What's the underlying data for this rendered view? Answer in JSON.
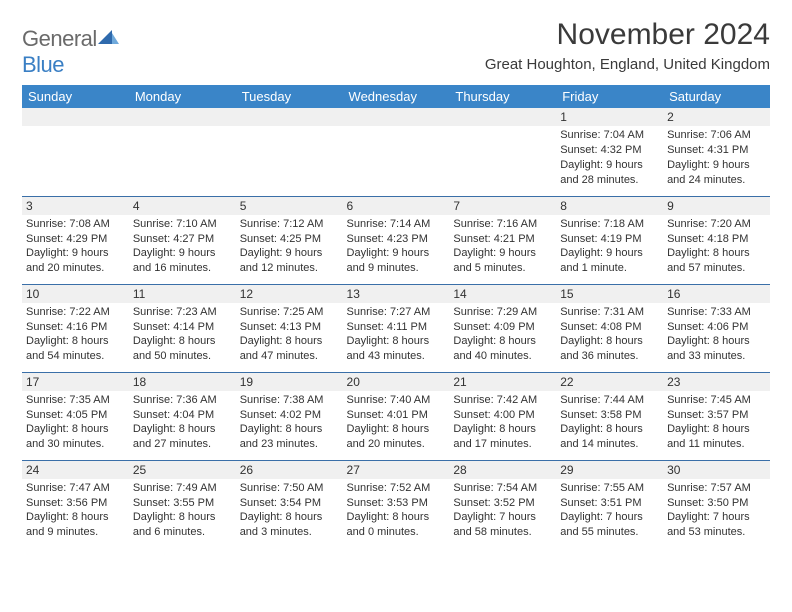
{
  "logo": {
    "word1": "General",
    "word2": "Blue"
  },
  "title": "November 2024",
  "location": "Great Houghton, England, United Kingdom",
  "colors": {
    "header_bg": "#3a85c8",
    "header_text": "#ffffff",
    "daynum_bg": "#f0f0f0",
    "border": "#3a6fa8",
    "text": "#323232",
    "logo_gray": "#6a6a6a",
    "logo_blue": "#3a7fc4"
  },
  "day_headers": [
    "Sunday",
    "Monday",
    "Tuesday",
    "Wednesday",
    "Thursday",
    "Friday",
    "Saturday"
  ],
  "weeks": [
    [
      {
        "n": "",
        "lines": []
      },
      {
        "n": "",
        "lines": []
      },
      {
        "n": "",
        "lines": []
      },
      {
        "n": "",
        "lines": []
      },
      {
        "n": "",
        "lines": []
      },
      {
        "n": "1",
        "lines": [
          "Sunrise: 7:04 AM",
          "Sunset: 4:32 PM",
          "Daylight: 9 hours",
          "and 28 minutes."
        ]
      },
      {
        "n": "2",
        "lines": [
          "Sunrise: 7:06 AM",
          "Sunset: 4:31 PM",
          "Daylight: 9 hours",
          "and 24 minutes."
        ]
      }
    ],
    [
      {
        "n": "3",
        "lines": [
          "Sunrise: 7:08 AM",
          "Sunset: 4:29 PM",
          "Daylight: 9 hours",
          "and 20 minutes."
        ]
      },
      {
        "n": "4",
        "lines": [
          "Sunrise: 7:10 AM",
          "Sunset: 4:27 PM",
          "Daylight: 9 hours",
          "and 16 minutes."
        ]
      },
      {
        "n": "5",
        "lines": [
          "Sunrise: 7:12 AM",
          "Sunset: 4:25 PM",
          "Daylight: 9 hours",
          "and 12 minutes."
        ]
      },
      {
        "n": "6",
        "lines": [
          "Sunrise: 7:14 AM",
          "Sunset: 4:23 PM",
          "Daylight: 9 hours",
          "and 9 minutes."
        ]
      },
      {
        "n": "7",
        "lines": [
          "Sunrise: 7:16 AM",
          "Sunset: 4:21 PM",
          "Daylight: 9 hours",
          "and 5 minutes."
        ]
      },
      {
        "n": "8",
        "lines": [
          "Sunrise: 7:18 AM",
          "Sunset: 4:19 PM",
          "Daylight: 9 hours",
          "and 1 minute."
        ]
      },
      {
        "n": "9",
        "lines": [
          "Sunrise: 7:20 AM",
          "Sunset: 4:18 PM",
          "Daylight: 8 hours",
          "and 57 minutes."
        ]
      }
    ],
    [
      {
        "n": "10",
        "lines": [
          "Sunrise: 7:22 AM",
          "Sunset: 4:16 PM",
          "Daylight: 8 hours",
          "and 54 minutes."
        ]
      },
      {
        "n": "11",
        "lines": [
          "Sunrise: 7:23 AM",
          "Sunset: 4:14 PM",
          "Daylight: 8 hours",
          "and 50 minutes."
        ]
      },
      {
        "n": "12",
        "lines": [
          "Sunrise: 7:25 AM",
          "Sunset: 4:13 PM",
          "Daylight: 8 hours",
          "and 47 minutes."
        ]
      },
      {
        "n": "13",
        "lines": [
          "Sunrise: 7:27 AM",
          "Sunset: 4:11 PM",
          "Daylight: 8 hours",
          "and 43 minutes."
        ]
      },
      {
        "n": "14",
        "lines": [
          "Sunrise: 7:29 AM",
          "Sunset: 4:09 PM",
          "Daylight: 8 hours",
          "and 40 minutes."
        ]
      },
      {
        "n": "15",
        "lines": [
          "Sunrise: 7:31 AM",
          "Sunset: 4:08 PM",
          "Daylight: 8 hours",
          "and 36 minutes."
        ]
      },
      {
        "n": "16",
        "lines": [
          "Sunrise: 7:33 AM",
          "Sunset: 4:06 PM",
          "Daylight: 8 hours",
          "and 33 minutes."
        ]
      }
    ],
    [
      {
        "n": "17",
        "lines": [
          "Sunrise: 7:35 AM",
          "Sunset: 4:05 PM",
          "Daylight: 8 hours",
          "and 30 minutes."
        ]
      },
      {
        "n": "18",
        "lines": [
          "Sunrise: 7:36 AM",
          "Sunset: 4:04 PM",
          "Daylight: 8 hours",
          "and 27 minutes."
        ]
      },
      {
        "n": "19",
        "lines": [
          "Sunrise: 7:38 AM",
          "Sunset: 4:02 PM",
          "Daylight: 8 hours",
          "and 23 minutes."
        ]
      },
      {
        "n": "20",
        "lines": [
          "Sunrise: 7:40 AM",
          "Sunset: 4:01 PM",
          "Daylight: 8 hours",
          "and 20 minutes."
        ]
      },
      {
        "n": "21",
        "lines": [
          "Sunrise: 7:42 AM",
          "Sunset: 4:00 PM",
          "Daylight: 8 hours",
          "and 17 minutes."
        ]
      },
      {
        "n": "22",
        "lines": [
          "Sunrise: 7:44 AM",
          "Sunset: 3:58 PM",
          "Daylight: 8 hours",
          "and 14 minutes."
        ]
      },
      {
        "n": "23",
        "lines": [
          "Sunrise: 7:45 AM",
          "Sunset: 3:57 PM",
          "Daylight: 8 hours",
          "and 11 minutes."
        ]
      }
    ],
    [
      {
        "n": "24",
        "lines": [
          "Sunrise: 7:47 AM",
          "Sunset: 3:56 PM",
          "Daylight: 8 hours",
          "and 9 minutes."
        ]
      },
      {
        "n": "25",
        "lines": [
          "Sunrise: 7:49 AM",
          "Sunset: 3:55 PM",
          "Daylight: 8 hours",
          "and 6 minutes."
        ]
      },
      {
        "n": "26",
        "lines": [
          "Sunrise: 7:50 AM",
          "Sunset: 3:54 PM",
          "Daylight: 8 hours",
          "and 3 minutes."
        ]
      },
      {
        "n": "27",
        "lines": [
          "Sunrise: 7:52 AM",
          "Sunset: 3:53 PM",
          "Daylight: 8 hours",
          "and 0 minutes."
        ]
      },
      {
        "n": "28",
        "lines": [
          "Sunrise: 7:54 AM",
          "Sunset: 3:52 PM",
          "Daylight: 7 hours",
          "and 58 minutes."
        ]
      },
      {
        "n": "29",
        "lines": [
          "Sunrise: 7:55 AM",
          "Sunset: 3:51 PM",
          "Daylight: 7 hours",
          "and 55 minutes."
        ]
      },
      {
        "n": "30",
        "lines": [
          "Sunrise: 7:57 AM",
          "Sunset: 3:50 PM",
          "Daylight: 7 hours",
          "and 53 minutes."
        ]
      }
    ]
  ]
}
